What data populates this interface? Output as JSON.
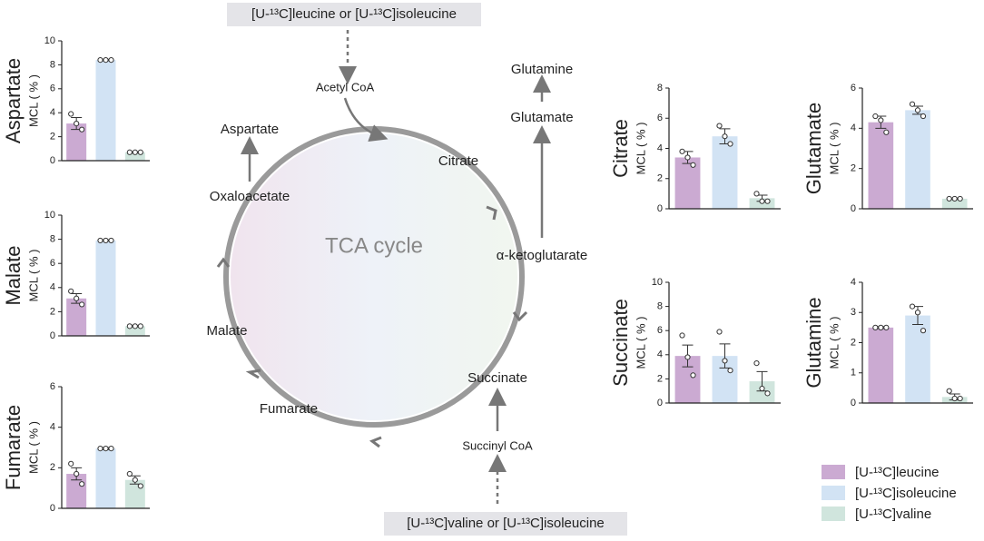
{
  "chart_data": [
    {
      "type": "bar",
      "title": "Aspartate",
      "ylabel": "MCL ( % )",
      "values": [
        3.1,
        8.4,
        0.7
      ],
      "errors": [
        0.5,
        0.05,
        0.05
      ],
      "points": [
        [
          3.9,
          3.1,
          2.6
        ],
        [
          8.4,
          8.4,
          8.4
        ],
        [
          0.7,
          0.7,
          0.7
        ]
      ],
      "ylim": [
        0,
        10
      ],
      "yticks": [
        0,
        2,
        4,
        6,
        8,
        10
      ]
    },
    {
      "type": "bar",
      "title": "Malate",
      "ylabel": "MCL ( % )",
      "values": [
        3.1,
        7.9,
        0.8
      ],
      "errors": [
        0.4,
        0.05,
        0.05
      ],
      "points": [
        [
          3.7,
          3.1,
          2.6
        ],
        [
          7.9,
          7.9,
          7.9
        ],
        [
          0.8,
          0.8,
          0.8
        ]
      ],
      "ylim": [
        0,
        10
      ],
      "yticks": [
        0,
        2,
        4,
        6,
        8,
        10
      ]
    },
    {
      "type": "bar",
      "title": "Fumarate",
      "ylabel": "MCL ( % )",
      "values": [
        1.7,
        2.95,
        1.4
      ],
      "errors": [
        0.3,
        0.05,
        0.2
      ],
      "points": [
        [
          2.2,
          1.7,
          1.2
        ],
        [
          2.95,
          2.95,
          2.95
        ],
        [
          1.7,
          1.4,
          1.1
        ]
      ],
      "ylim": [
        0,
        6
      ],
      "yticks": [
        0,
        2,
        4,
        6
      ]
    },
    {
      "type": "bar",
      "title": "Citrate",
      "ylabel": "MCL ( % )",
      "values": [
        3.4,
        4.8,
        0.7
      ],
      "errors": [
        0.4,
        0.5,
        0.2
      ],
      "points": [
        [
          3.8,
          3.4,
          2.9
        ],
        [
          5.5,
          4.8,
          4.3
        ],
        [
          1.0,
          0.5,
          0.5
        ]
      ],
      "ylim": [
        0,
        8
      ],
      "yticks": [
        0,
        2,
        4,
        6,
        8
      ]
    },
    {
      "type": "bar",
      "title": "Glutamate",
      "ylabel": "MCL ( % )",
      "values": [
        4.3,
        4.9,
        0.5
      ],
      "errors": [
        0.3,
        0.2,
        0.03
      ],
      "points": [
        [
          4.6,
          4.4,
          3.8
        ],
        [
          5.2,
          4.9,
          4.6
        ],
        [
          0.5,
          0.5,
          0.5
        ]
      ],
      "ylim": [
        0,
        6
      ],
      "yticks": [
        0,
        2,
        4,
        6
      ]
    },
    {
      "type": "bar",
      "title": "Succinate",
      "ylabel": "MCL ( % )",
      "values": [
        3.9,
        3.9,
        1.8
      ],
      "errors": [
        0.9,
        1.0,
        0.8
      ],
      "points": [
        [
          5.6,
          3.8,
          2.3
        ],
        [
          5.9,
          3.5,
          2.7
        ],
        [
          3.3,
          1.2,
          0.8
        ]
      ],
      "ylim": [
        0,
        10
      ],
      "yticks": [
        0,
        2,
        4,
        6,
        8,
        10
      ]
    },
    {
      "type": "bar",
      "title": "Glutamine",
      "ylabel": "MCL ( % )",
      "values": [
        2.5,
        2.9,
        0.2
      ],
      "errors": [
        0.03,
        0.3,
        0.1
      ],
      "points": [
        [
          2.5,
          2.5,
          2.5
        ],
        [
          3.2,
          3.0,
          2.4
        ],
        [
          0.4,
          0.15,
          0.15
        ]
      ],
      "ylim": [
        0,
        4
      ],
      "yticks": [
        0,
        1,
        2,
        3,
        4
      ]
    }
  ],
  "legend": {
    "names": [
      "[U-¹³C]leucine",
      "[U-¹³C]isoleucine",
      "[U-¹³C]valine"
    ],
    "colors": [
      "#cbaad2",
      "#d2e3f4",
      "#d0e5dd"
    ]
  },
  "diagram": {
    "top_source": "[U-¹³C]leucine or [U-¹³C]isoleucine",
    "bottom_source": "[U-¹³C]valine or [U-¹³C]isoleucine",
    "center": "TCA cycle",
    "labels": [
      "Acetyl CoA",
      "Aspartate",
      "Oxaloacetate",
      "Citrate",
      "Glutamine",
      "Glutamate",
      "α-ketoglutarate",
      "Malate",
      "Fumarate",
      "Succinate",
      "Succinyl CoA"
    ]
  }
}
